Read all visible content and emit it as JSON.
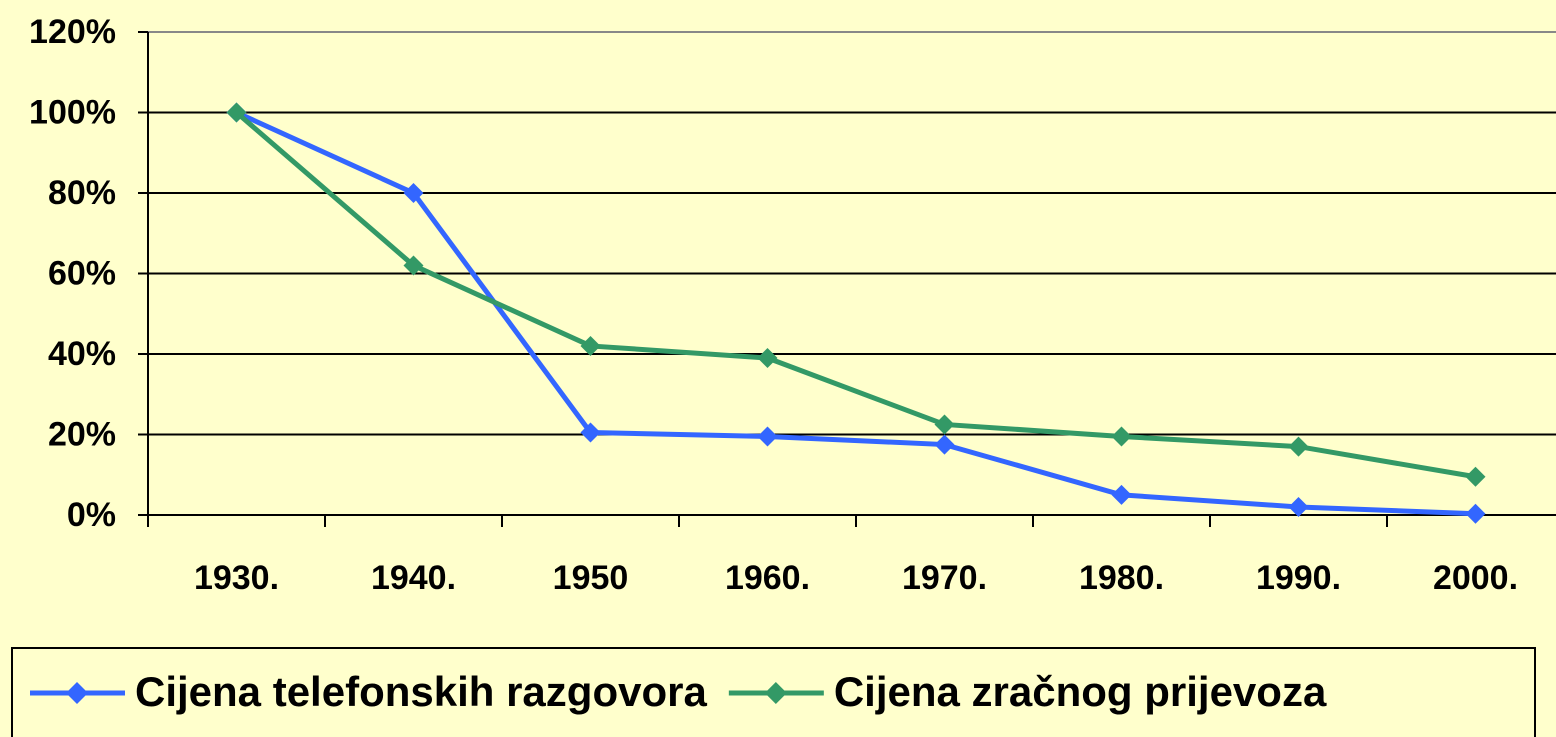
{
  "chart_data": {
    "type": "line",
    "categories": [
      "1930.",
      "1940.",
      "1950",
      "1960.",
      "1970.",
      "1980.",
      "1990.",
      "2000."
    ],
    "series": [
      {
        "name": "Cijena telefonskih razgovora",
        "color": "#3366ff",
        "values": [
          100,
          80,
          20.5,
          19.5,
          17.5,
          5,
          2,
          0.3
        ]
      },
      {
        "name": "Cijena zračnog prijevoza",
        "color": "#339966",
        "values": [
          100,
          62,
          42,
          39,
          22.5,
          19.5,
          17,
          9.5
        ]
      }
    ],
    "ylim": [
      0,
      120
    ],
    "yticks": [
      {
        "value": 0,
        "label": "0%"
      },
      {
        "value": 20,
        "label": "20%"
      },
      {
        "value": 40,
        "label": "40%"
      },
      {
        "value": 60,
        "label": "60%"
      },
      {
        "value": 80,
        "label": "80%"
      },
      {
        "value": 100,
        "label": "100%"
      },
      {
        "value": 120,
        "label": "120%"
      }
    ],
    "grid": true,
    "legend": "bottom"
  }
}
